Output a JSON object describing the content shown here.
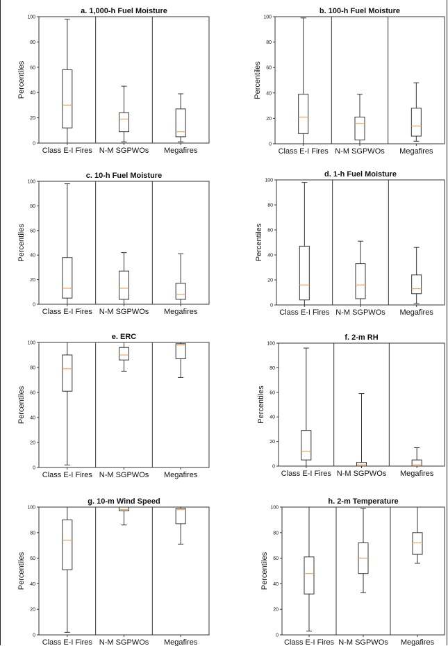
{
  "chart_data": [
    {
      "type": "box",
      "title": "a. 1,000-h Fuel Moisture",
      "ylabel": "Percentiles",
      "categories": [
        "Class E-I Fires",
        "N-M SGPWOs",
        "Megafires"
      ],
      "ylim": [
        0,
        100
      ],
      "yticks": [
        0,
        20,
        40,
        60,
        80,
        100
      ],
      "grid": false,
      "boxes": [
        {
          "whislo": 0,
          "q1": 12,
          "med": 30,
          "q3": 58,
          "whishi": 98
        },
        {
          "whislo": 1,
          "q1": 9,
          "med": 19,
          "q3": 24,
          "whishi": 45
        },
        {
          "whislo": 1,
          "q1": 5,
          "med": 9,
          "q3": 27,
          "whishi": 39
        }
      ]
    },
    {
      "type": "box",
      "title": "b. 100-h Fuel Moisture",
      "ylabel": "Percentiles",
      "categories": [
        "Class E-I Fires",
        "N-M SGPWOs",
        "Megafires"
      ],
      "ylim": [
        0,
        100
      ],
      "yticks": [
        0,
        20,
        40,
        60,
        80,
        100
      ],
      "grid": false,
      "boxes": [
        {
          "whislo": 0,
          "q1": 8,
          "med": 21,
          "q3": 39,
          "whishi": 99
        },
        {
          "whislo": 0,
          "q1": 3,
          "med": 16,
          "q3": 21,
          "whishi": 39
        },
        {
          "whislo": 2,
          "q1": 6,
          "med": 14,
          "q3": 28,
          "whishi": 48
        }
      ]
    },
    {
      "type": "box",
      "title": "c. 10-h Fuel Moisture",
      "ylabel": "Percentiles",
      "categories": [
        "Class E-I Fires",
        "N-M SGPWOs",
        "Megafires"
      ],
      "ylim": [
        0,
        100
      ],
      "yticks": [
        0,
        20,
        40,
        60,
        80,
        100
      ],
      "grid": false,
      "boxes": [
        {
          "whislo": 0,
          "q1": 5,
          "med": 13,
          "q3": 38,
          "whishi": 98
        },
        {
          "whislo": 0,
          "q1": 4,
          "med": 13,
          "q3": 27,
          "whishi": 42
        },
        {
          "whislo": 0,
          "q1": 4,
          "med": 8,
          "q3": 17,
          "whishi": 41
        }
      ]
    },
    {
      "type": "box",
      "title": "d. 1-h Fuel Moisture",
      "ylabel": "Percentiles",
      "categories": [
        "Class E-I Fires",
        "N-M SGPWOs",
        "Megafires"
      ],
      "ylim": [
        0,
        100
      ],
      "yticks": [
        0,
        20,
        40,
        60,
        80,
        100
      ],
      "grid": false,
      "boxes": [
        {
          "whislo": 0,
          "q1": 4,
          "med": 16,
          "q3": 47,
          "whishi": 98
        },
        {
          "whislo": 0,
          "q1": 5,
          "med": 16,
          "q3": 33,
          "whishi": 51
        },
        {
          "whislo": 1,
          "q1": 9,
          "med": 13,
          "q3": 24,
          "whishi": 46
        }
      ]
    },
    {
      "type": "box",
      "title": "e. ERC",
      "ylabel": "Percentiles",
      "categories": [
        "Class E-I Fires",
        "N-M SGPWOs",
        "Megafires"
      ],
      "ylim": [
        0,
        100
      ],
      "yticks": [
        0,
        20,
        40,
        60,
        80,
        100
      ],
      "grid": false,
      "boxes": [
        {
          "whislo": 2,
          "q1": 61,
          "med": 79,
          "q3": 90,
          "whishi": 100
        },
        {
          "whislo": 77,
          "q1": 86,
          "med": 90,
          "q3": 96,
          "whishi": 100
        },
        {
          "whislo": 72,
          "q1": 87,
          "med": 98,
          "q3": 99,
          "whishi": 100
        }
      ]
    },
    {
      "type": "box",
      "title": "f. 2-m RH",
      "ylabel": "Percentiles",
      "categories": [
        "Class E-I Fires",
        "N-M SGPWOs",
        "Megafires"
      ],
      "ylim": [
        0,
        100
      ],
      "yticks": [
        0,
        20,
        40,
        60,
        80,
        100
      ],
      "grid": false,
      "boxes": [
        {
          "whislo": 0,
          "q1": 5,
          "med": 12,
          "q3": 29,
          "whishi": 96
        },
        {
          "whislo": 0,
          "q1": 0,
          "med": 1,
          "q3": 3,
          "whishi": 59
        },
        {
          "whislo": 0,
          "q1": 0,
          "med": 1,
          "q3": 5,
          "whishi": 15
        }
      ]
    },
    {
      "type": "box",
      "title": "g. 10-m Wind Speed",
      "ylabel": "Percentiles",
      "categories": [
        "Class E-I Fires",
        "N-M SGPWOs",
        "Megafires"
      ],
      "ylim": [
        0,
        100
      ],
      "yticks": [
        0,
        20,
        40,
        60,
        80,
        100
      ],
      "grid": false,
      "boxes": [
        {
          "whislo": 2,
          "q1": 51,
          "med": 74,
          "q3": 90,
          "whishi": 100
        },
        {
          "whislo": 86,
          "q1": 97,
          "med": 98,
          "q3": 100,
          "whishi": 100
        },
        {
          "whislo": 71,
          "q1": 87,
          "med": 98,
          "q3": 99,
          "whishi": 100
        }
      ]
    },
    {
      "type": "box",
      "title": "h. 2-m Temperature",
      "ylabel": "Percentiles",
      "categories": [
        "Class E-I Fires",
        "N-M SGPWOs",
        "Megafires"
      ],
      "ylim": [
        0,
        100
      ],
      "yticks": [
        0,
        20,
        40,
        60,
        80,
        100
      ],
      "grid": false,
      "boxes": [
        {
          "whislo": 3,
          "q1": 32,
          "med": 48,
          "q3": 61,
          "whishi": 100
        },
        {
          "whislo": 33,
          "q1": 48,
          "med": 60,
          "q3": 72,
          "whishi": 99
        },
        {
          "whislo": 56,
          "q1": 63,
          "med": 72,
          "q3": 80,
          "whishi": 100
        }
      ]
    }
  ],
  "colors": {
    "box_edge": "#333333",
    "median": "#f4a460",
    "axis": "#333333",
    "text": "#111111"
  }
}
